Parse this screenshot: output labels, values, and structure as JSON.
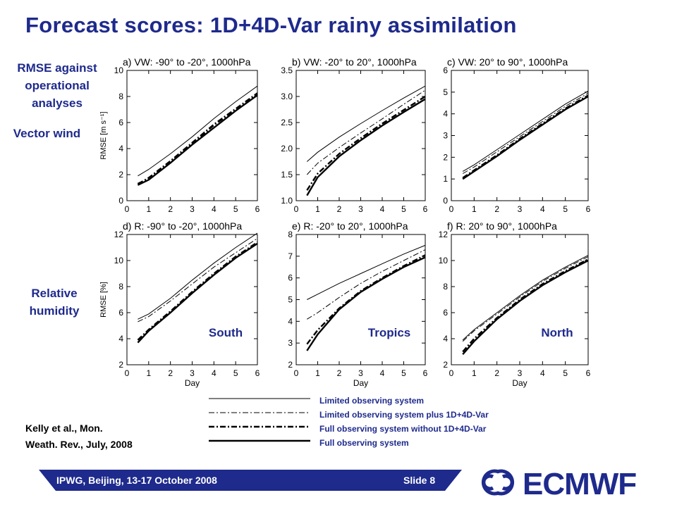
{
  "slide": {
    "title": "Forecast scores: 1D+4D-Var rainy assimilation",
    "side_labels": {
      "rmse_line1": "RMSE against",
      "rmse_line2": "operational",
      "rmse_line3": "analyses",
      "vector_wind": "Vector wind",
      "rh_line1": "Relative",
      "rh_line2": "humidity"
    },
    "region_labels": [
      "South",
      "Tropics",
      "North"
    ],
    "citation_line1": "Kelly et al., Mon.",
    "citation_line2": "Weath. Rev., July, 2008",
    "footer_left": "IPWG, Beijing, 13-17 October 2008",
    "footer_right": "Slide 8",
    "logo_text": "ECMWF",
    "colors": {
      "accent": "#1e2a8c",
      "background": "#ffffff",
      "line": "#000000"
    }
  },
  "legend": [
    {
      "label": "Limited observing system",
      "style": "thin-solid"
    },
    {
      "label": "Limited observing system plus 1D+4D-Var",
      "style": "thin-dashdot"
    },
    {
      "label": "Full observing system without 1D+4D-Var",
      "style": "thick-dashdot"
    },
    {
      "label": "Full observing system",
      "style": "thick-solid"
    }
  ],
  "chart_data": [
    {
      "type": "line",
      "title": "a) VW: -90° to -20°, 1000hPa",
      "xlabel": "",
      "ylabel": "RMSE [m s⁻¹]",
      "xlim": [
        0,
        6
      ],
      "ylim": [
        0,
        10
      ],
      "xticks": [
        0,
        1,
        2,
        3,
        4,
        5,
        6
      ],
      "yticks": [
        0,
        2,
        4,
        6,
        8,
        10
      ],
      "x": [
        0.5,
        1,
        2,
        3,
        4,
        5,
        6
      ],
      "series": [
        {
          "name": "Limited observing system",
          "style": "thin-solid",
          "values": [
            1.9,
            2.4,
            3.6,
            4.9,
            6.3,
            7.6,
            8.8
          ]
        },
        {
          "name": "Limited observing system plus 1D+4D-Var",
          "style": "thin-dashdot",
          "values": [
            1.3,
            1.8,
            3.1,
            4.5,
            5.9,
            7.1,
            8.3
          ]
        },
        {
          "name": "Full observing system without 1D+4D-Var",
          "style": "thick-dashdot",
          "values": [
            1.3,
            1.7,
            3.0,
            4.4,
            5.8,
            7.0,
            8.2
          ]
        },
        {
          "name": "Full observing system",
          "style": "thick-solid",
          "values": [
            1.2,
            1.6,
            2.9,
            4.3,
            5.6,
            6.9,
            8.1
          ]
        }
      ]
    },
    {
      "type": "line",
      "title": "b) VW: -20° to 20°, 1000hPa",
      "xlabel": "",
      "ylabel": "",
      "xlim": [
        0,
        6
      ],
      "ylim": [
        1.0,
        3.5
      ],
      "xticks": [
        0,
        1,
        2,
        3,
        4,
        5,
        6
      ],
      "yticks": [
        1.0,
        1.5,
        2.0,
        2.5,
        3.0,
        3.5
      ],
      "x": [
        0.5,
        1,
        2,
        3,
        4,
        5,
        6
      ],
      "series": [
        {
          "name": "Limited observing system",
          "style": "thin-solid",
          "values": [
            1.75,
            1.93,
            2.22,
            2.48,
            2.73,
            2.97,
            3.2
          ]
        },
        {
          "name": "Limited observing system plus 1D+4D-Var",
          "style": "thin-dashdot",
          "values": [
            1.5,
            1.72,
            2.02,
            2.3,
            2.57,
            2.85,
            3.12
          ]
        },
        {
          "name": "Full observing system without 1D+4D-Var",
          "style": "thick-dashdot",
          "values": [
            1.2,
            1.52,
            1.9,
            2.2,
            2.48,
            2.74,
            3.0
          ]
        },
        {
          "name": "Full observing system",
          "style": "thick-solid",
          "values": [
            1.1,
            1.45,
            1.85,
            2.16,
            2.44,
            2.7,
            2.95
          ]
        }
      ]
    },
    {
      "type": "line",
      "title": "c) VW: 20° to 90°, 1000hPa",
      "xlabel": "",
      "ylabel": "",
      "xlim": [
        0,
        6
      ],
      "ylim": [
        0,
        6
      ],
      "xticks": [
        0,
        1,
        2,
        3,
        4,
        5,
        6
      ],
      "yticks": [
        0,
        1,
        2,
        3,
        4,
        5,
        6
      ],
      "x": [
        0.5,
        1,
        2,
        3,
        4,
        5,
        6
      ],
      "series": [
        {
          "name": "Limited observing system",
          "style": "thin-solid",
          "values": [
            1.35,
            1.65,
            2.35,
            3.05,
            3.75,
            4.45,
            5.05
          ]
        },
        {
          "name": "Limited observing system plus 1D+4D-Var",
          "style": "thin-dashdot",
          "values": [
            1.25,
            1.55,
            2.25,
            2.95,
            3.65,
            4.35,
            4.95
          ]
        },
        {
          "name": "Full observing system without 1D+4D-Var",
          "style": "thick-dashdot",
          "values": [
            1.05,
            1.4,
            2.1,
            2.85,
            3.55,
            4.25,
            4.85
          ]
        },
        {
          "name": "Full observing system",
          "style": "thick-solid",
          "values": [
            1.0,
            1.35,
            2.05,
            2.8,
            3.5,
            4.2,
            4.8
          ]
        }
      ]
    },
    {
      "type": "line",
      "title": "d) R: -90° to -20°, 1000hPa",
      "xlabel": "Day",
      "ylabel": "RMSE [%]",
      "xlim": [
        0,
        6
      ],
      "ylim": [
        2,
        12
      ],
      "xticks": [
        0,
        1,
        2,
        3,
        4,
        5,
        6
      ],
      "yticks": [
        2,
        4,
        6,
        8,
        10,
        12
      ],
      "x": [
        0.5,
        1,
        2,
        3,
        4,
        5,
        6
      ],
      "series": [
        {
          "name": "Limited observing system",
          "style": "thin-solid",
          "values": [
            5.5,
            5.9,
            7.1,
            8.5,
            9.8,
            11.0,
            12.1
          ]
        },
        {
          "name": "Limited observing system plus 1D+4D-Var",
          "style": "thin-dashdot",
          "values": [
            5.3,
            5.7,
            6.9,
            8.2,
            9.5,
            10.6,
            11.7
          ]
        },
        {
          "name": "Full observing system without 1D+4D-Var",
          "style": "thick-dashdot",
          "values": [
            3.9,
            4.7,
            6.1,
            7.6,
            9.0,
            10.3,
            11.4
          ]
        },
        {
          "name": "Full observing system",
          "style": "thick-solid",
          "values": [
            3.7,
            4.6,
            6.0,
            7.5,
            8.9,
            10.2,
            11.3
          ]
        }
      ]
    },
    {
      "type": "line",
      "title": "e) R: -20° to 20°, 1000hPa",
      "xlabel": "Day",
      "ylabel": "",
      "xlim": [
        0,
        6
      ],
      "ylim": [
        2,
        8
      ],
      "xticks": [
        0,
        1,
        2,
        3,
        4,
        5,
        6
      ],
      "yticks": [
        2,
        3,
        4,
        5,
        6,
        7,
        8
      ],
      "x": [
        0.5,
        1,
        2,
        3,
        4,
        5,
        6
      ],
      "series": [
        {
          "name": "Limited observing system",
          "style": "thin-solid",
          "values": [
            5.0,
            5.25,
            5.75,
            6.2,
            6.65,
            7.1,
            7.5
          ]
        },
        {
          "name": "Limited observing system plus 1D+4D-Var",
          "style": "thin-dashdot",
          "values": [
            4.1,
            4.4,
            5.1,
            5.75,
            6.3,
            6.8,
            7.3
          ]
        },
        {
          "name": "Full observing system without 1D+4D-Var",
          "style": "thick-dashdot",
          "values": [
            2.95,
            3.6,
            4.6,
            5.4,
            6.0,
            6.55,
            7.05
          ]
        },
        {
          "name": "Full observing system",
          "style": "thick-solid",
          "values": [
            2.65,
            3.4,
            4.55,
            5.35,
            5.95,
            6.5,
            6.95
          ]
        }
      ]
    },
    {
      "type": "line",
      "title": "f) R: 20° to 90°, 1000hPa",
      "xlabel": "Day",
      "ylabel": "",
      "xlim": [
        0,
        6
      ],
      "ylim": [
        2,
        12
      ],
      "xticks": [
        0,
        1,
        2,
        3,
        4,
        5,
        6
      ],
      "yticks": [
        2,
        4,
        6,
        8,
        10,
        12
      ],
      "x": [
        0.5,
        1,
        2,
        3,
        4,
        5,
        6
      ],
      "series": [
        {
          "name": "Limited observing system",
          "style": "thin-solid",
          "values": [
            3.9,
            4.7,
            6.0,
            7.3,
            8.5,
            9.5,
            10.4
          ]
        },
        {
          "name": "Limited observing system plus 1D+4D-Var",
          "style": "thin-dashdot",
          "values": [
            3.8,
            4.6,
            5.9,
            7.2,
            8.4,
            9.4,
            10.3
          ]
        },
        {
          "name": "Full observing system without 1D+4D-Var",
          "style": "thick-dashdot",
          "values": [
            3.0,
            4.0,
            5.6,
            7.0,
            8.2,
            9.2,
            10.1
          ]
        },
        {
          "name": "Full observing system",
          "style": "thick-solid",
          "values": [
            2.8,
            3.8,
            5.5,
            6.9,
            8.1,
            9.1,
            10.0
          ]
        }
      ]
    }
  ]
}
